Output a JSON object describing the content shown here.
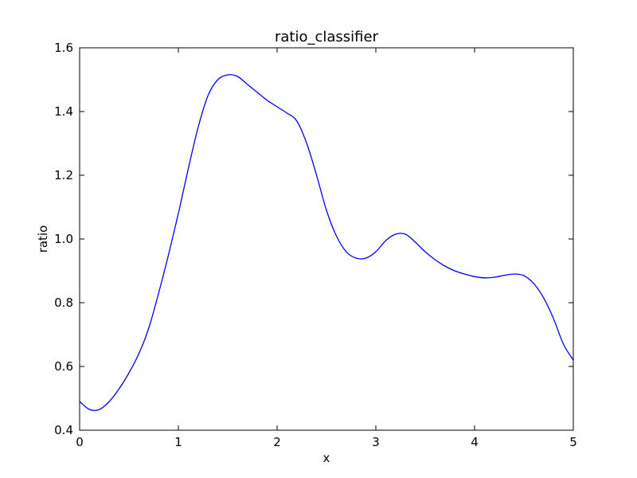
{
  "chart_data": {
    "type": "line",
    "title": "ratio_classifier",
    "xlabel": "x",
    "ylabel": "ratio",
    "xlim": [
      0,
      5
    ],
    "ylim": [
      0.4,
      1.6
    ],
    "xticks": [
      0,
      1,
      2,
      3,
      4,
      5
    ],
    "xtick_labels": [
      "0",
      "1",
      "2",
      "3",
      "4",
      "5"
    ],
    "yticks": [
      0.4,
      0.6,
      0.8,
      1.0,
      1.2,
      1.4,
      1.6
    ],
    "ytick_labels": [
      "0.4",
      "0.6",
      "0.8",
      "1.0",
      "1.2",
      "1.4",
      "1.6"
    ],
    "grid": false,
    "line_color": "#0000ff",
    "series": [
      {
        "x": [
          0,
          0.1,
          0.2,
          0.3,
          0.4,
          0.5,
          0.6,
          0.7,
          0.8,
          0.9,
          1.0,
          1.1,
          1.2,
          1.3,
          1.4,
          1.5,
          1.6,
          1.7,
          1.8,
          1.9,
          2.0,
          2.1,
          2.2,
          2.3,
          2.4,
          2.5,
          2.6,
          2.7,
          2.8,
          2.9,
          3.0,
          3.1,
          3.2,
          3.3,
          3.4,
          3.5,
          3.6,
          3.7,
          3.8,
          3.9,
          4.0,
          4.1,
          4.2,
          4.3,
          4.4,
          4.5,
          4.6,
          4.7,
          4.8,
          4.9,
          5.0
        ],
        "values": [
          0.49,
          0.465,
          0.465,
          0.49,
          0.53,
          0.58,
          0.64,
          0.72,
          0.83,
          0.95,
          1.08,
          1.22,
          1.35,
          1.45,
          1.5,
          1.515,
          1.51,
          1.485,
          1.46,
          1.435,
          1.415,
          1.395,
          1.37,
          1.3,
          1.2,
          1.09,
          1.01,
          0.96,
          0.94,
          0.94,
          0.96,
          0.995,
          1.015,
          1.015,
          0.99,
          0.96,
          0.935,
          0.915,
          0.9,
          0.89,
          0.882,
          0.878,
          0.88,
          0.886,
          0.89,
          0.885,
          0.86,
          0.815,
          0.75,
          0.67,
          0.62
        ]
      }
    ]
  }
}
